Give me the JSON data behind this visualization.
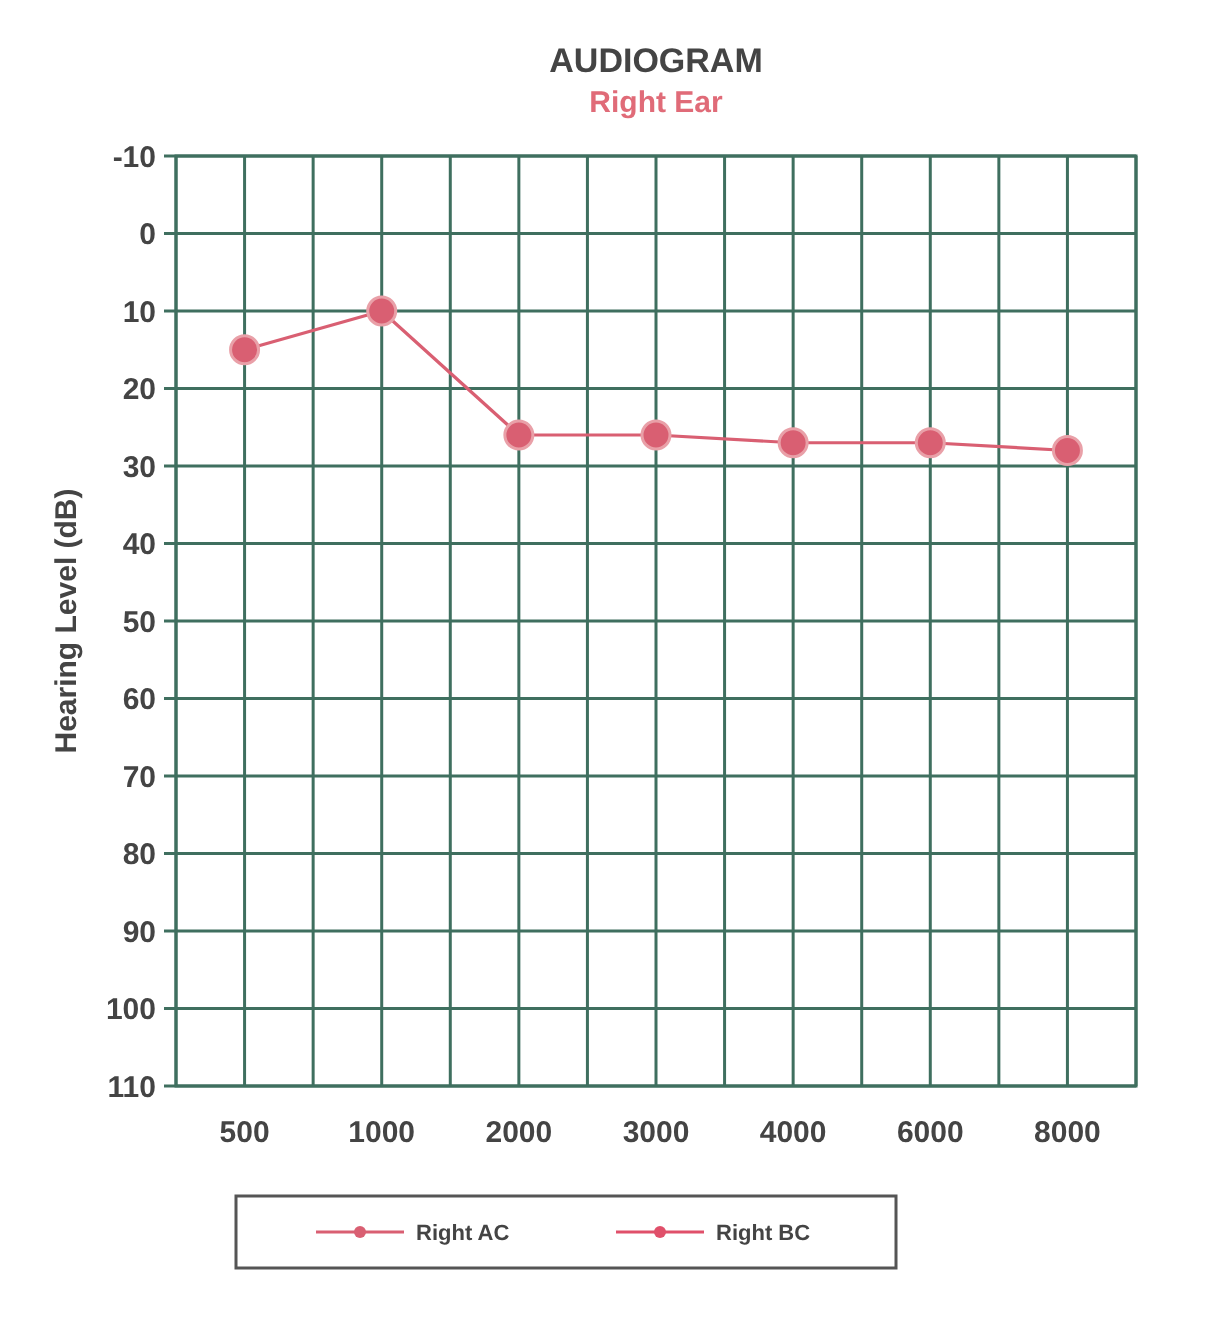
{
  "chart_data": {
    "type": "line",
    "title": "AUDIOGRAM",
    "subtitle": "Right Ear",
    "ylabel": "Hearing Level (dB)",
    "categories": [
      "500",
      "1000",
      "2000",
      "3000",
      "4000",
      "6000",
      "8000"
    ],
    "series": [
      {
        "name": "Right AC",
        "color": "#d95f72",
        "values": [
          15,
          10,
          26,
          26,
          27,
          27,
          28
        ]
      },
      {
        "name": "Right BC",
        "color": "#e0506a",
        "values": [
          null,
          null,
          null,
          null,
          null,
          null,
          null
        ]
      }
    ],
    "ylim": [
      110,
      -10
    ],
    "yticks": [
      -10,
      0,
      10,
      20,
      30,
      40,
      50,
      60,
      70,
      80,
      90,
      100,
      110
    ],
    "grid": true,
    "legend": "bottom",
    "marker": "circle",
    "line_style": "solid"
  }
}
